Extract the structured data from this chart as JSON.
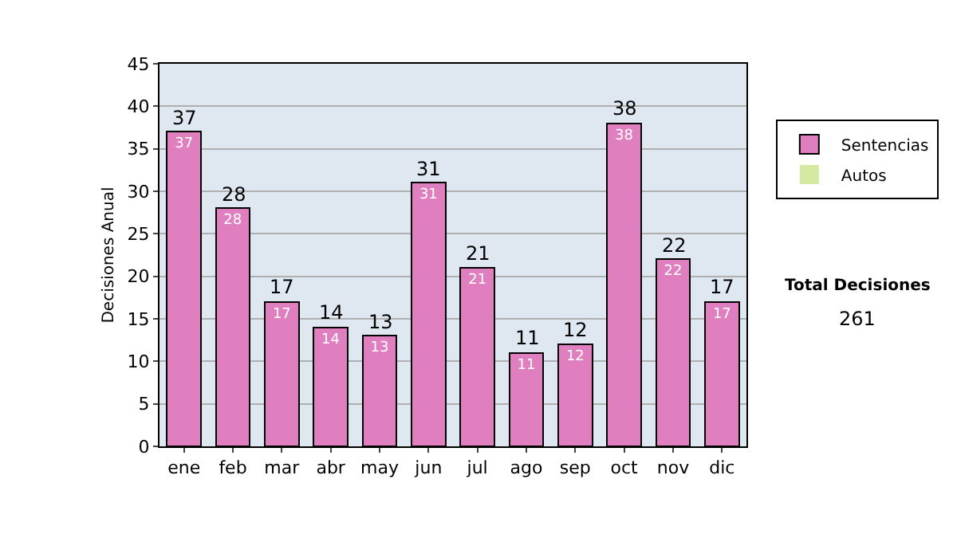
{
  "chart_data": {
    "type": "bar",
    "stacked": true,
    "ylabel": "Decisiones Anual",
    "categories": [
      "ene",
      "feb",
      "mar",
      "abr",
      "may",
      "jun",
      "jul",
      "ago",
      "sep",
      "oct",
      "nov",
      "dic"
    ],
    "series": [
      {
        "name": "Sentencias",
        "color": "#e07fc0",
        "values": [
          37,
          28,
          17,
          14,
          13,
          31,
          21,
          11,
          12,
          38,
          22,
          17
        ],
        "value_labels": [
          "37",
          "28",
          "17",
          "14",
          "13",
          "31",
          "21",
          "11",
          "12",
          "38",
          "22",
          "17"
        ]
      },
      {
        "name": "Autos",
        "color": "#d4eaa0",
        "values": [
          0,
          0,
          0,
          0,
          0,
          0,
          0,
          0,
          0,
          0,
          0,
          0
        ]
      }
    ],
    "totals": [
      "37",
      "28",
      "17",
      "14",
      "13",
      "31",
      "21",
      "11",
      "12",
      "38",
      "22",
      "17"
    ],
    "ylim": [
      0,
      45
    ],
    "yticks": [
      0,
      5,
      10,
      15,
      20,
      25,
      30,
      35,
      40,
      45
    ],
    "grid": "y",
    "legend": "right",
    "annotations": [
      "Total Decisiones",
      "261"
    ]
  }
}
